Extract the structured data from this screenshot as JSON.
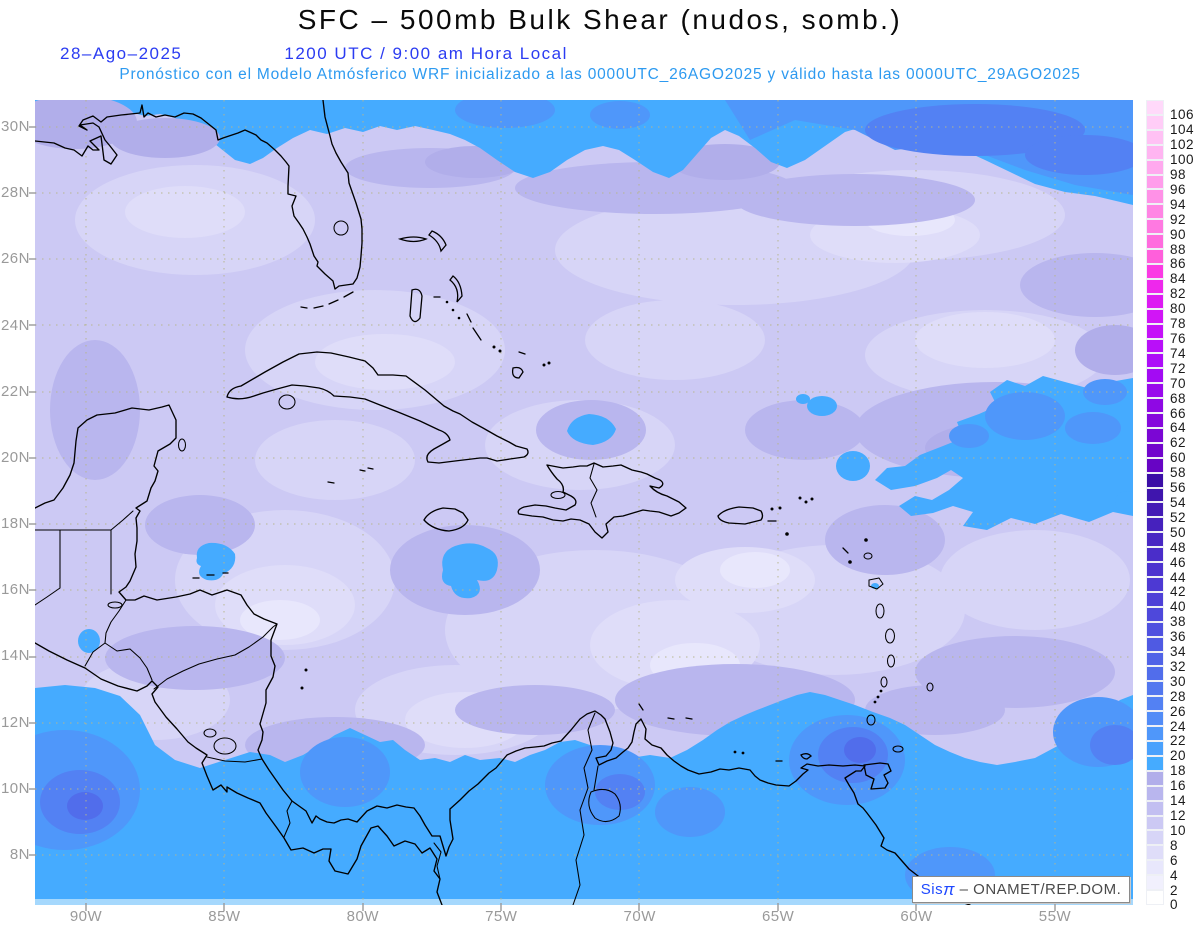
{
  "header": {
    "title": "SFC – 500mb Bulk Shear (nudos, somb.)",
    "date": "28–Ago–2025",
    "time": "1200 UTC / 9:00 am Hora Local",
    "forecast": "Pronóstico con el Modelo Atmósferico WRF inicializado a las 0000UTC_26AGO2025 y válido hasta las 0000UTC_29AGO2025"
  },
  "map": {
    "lat_labels": [
      "30N",
      "28N",
      "26N",
      "24N",
      "22N",
      "20N",
      "18N",
      "16N",
      "14N",
      "12N",
      "10N",
      "8N"
    ],
    "lon_labels": [
      "90W",
      "85W",
      "80W",
      "75W",
      "70W",
      "65W",
      "60W",
      "55W"
    ]
  },
  "legend": {
    "units": "nudos",
    "min": 0,
    "max": 106,
    "step": 2,
    "entries": [
      {
        "v": "106",
        "c": "#ffd9fa"
      },
      {
        "v": "104",
        "c": "#ffcdf7"
      },
      {
        "v": "102",
        "c": "#ffc1f4"
      },
      {
        "v": "100",
        "c": "#ffb5f1"
      },
      {
        "v": "98",
        "c": "#ffa9ee"
      },
      {
        "v": "96",
        "c": "#ff9deb"
      },
      {
        "v": "94",
        "c": "#ff91e7"
      },
      {
        "v": "92",
        "c": "#ff85e4"
      },
      {
        "v": "90",
        "c": "#ff79e1"
      },
      {
        "v": "88",
        "c": "#ff6cde"
      },
      {
        "v": "86",
        "c": "#ff5fdb"
      },
      {
        "v": "84",
        "c": "#fb3be4"
      },
      {
        "v": "82",
        "c": "#ee28ec"
      },
      {
        "v": "80",
        "c": "#dd1bf2"
      },
      {
        "v": "78",
        "c": "#d115f6"
      },
      {
        "v": "76",
        "c": "#c511f8"
      },
      {
        "v": "74",
        "c": "#b90ff9"
      },
      {
        "v": "72",
        "c": "#ad0df8"
      },
      {
        "v": "70",
        "c": "#a30bf3"
      },
      {
        "v": "68",
        "c": "#990aec"
      },
      {
        "v": "66",
        "c": "#8f08e4"
      },
      {
        "v": "64",
        "c": "#8507dc"
      },
      {
        "v": "62",
        "c": "#7b06d4"
      },
      {
        "v": "60",
        "c": "#7105cc"
      },
      {
        "v": "58",
        "c": "#6704c4"
      },
      {
        "v": "56",
        "c": "#3b0ea6"
      },
      {
        "v": "54",
        "c": "#3f15ad"
      },
      {
        "v": "52",
        "c": "#431bb5"
      },
      {
        "v": "50",
        "c": "#4621bd"
      },
      {
        "v": "48",
        "c": "#4827c3"
      },
      {
        "v": "46",
        "c": "#4a2dc9"
      },
      {
        "v": "44",
        "c": "#4c33cf"
      },
      {
        "v": "42",
        "c": "#4d39d3"
      },
      {
        "v": "40",
        "c": "#4e40d7"
      },
      {
        "v": "38",
        "c": "#4e48db"
      },
      {
        "v": "36",
        "c": "#4f51df"
      },
      {
        "v": "34",
        "c": "#4f5ae3"
      },
      {
        "v": "32",
        "c": "#5063e7"
      },
      {
        "v": "30",
        "c": "#516deb"
      },
      {
        "v": "28",
        "c": "#5277ef"
      },
      {
        "v": "26",
        "c": "#5381f3"
      },
      {
        "v": "24",
        "c": "#528cf7"
      },
      {
        "v": "22",
        "c": "#4f97fa"
      },
      {
        "v": "20",
        "c": "#4aa1fd"
      },
      {
        "v": "18",
        "c": "#45abff"
      },
      {
        "v": "16",
        "c": "#b1aeea"
      },
      {
        "v": "14",
        "c": "#b9b6ee"
      },
      {
        "v": "12",
        "c": "#c2bff1"
      },
      {
        "v": "10",
        "c": "#ccc9f4"
      },
      {
        "v": "8",
        "c": "#d7d5f7"
      },
      {
        "v": "6",
        "c": "#dfddf9"
      },
      {
        "v": "4",
        "c": "#e8e7fc"
      },
      {
        "v": "2",
        "c": "#f1f0fd"
      },
      {
        "v": "0",
        "c": "#ffffff"
      }
    ]
  },
  "watermark": {
    "brand": "Sis",
    "pi": "π",
    "org": " – ONAMET/REP.DOM."
  }
}
